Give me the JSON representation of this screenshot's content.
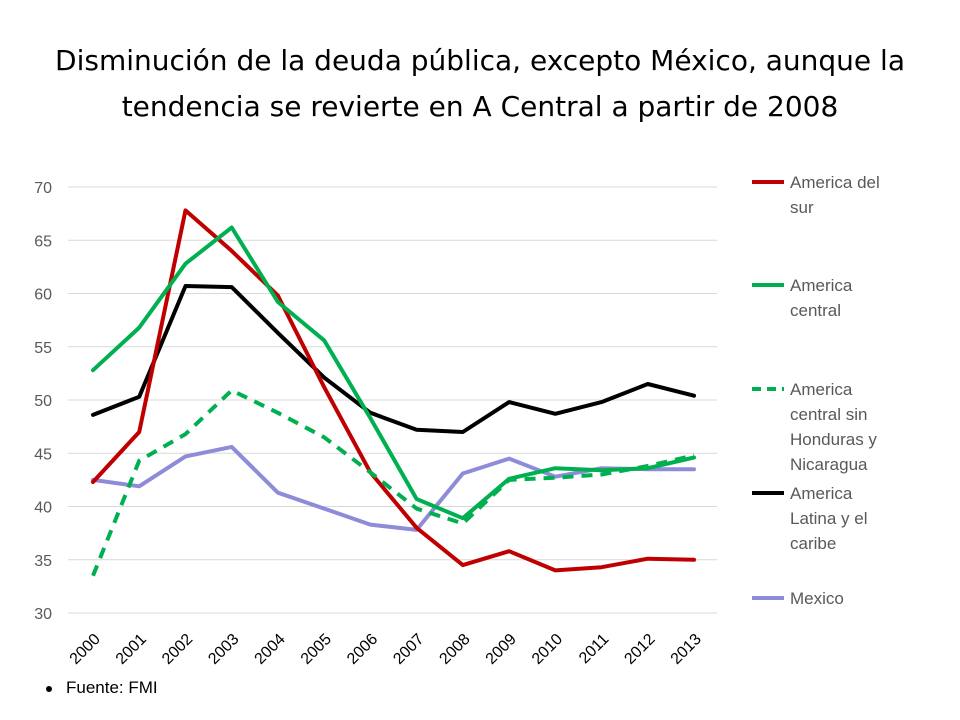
{
  "title_line1": "Disminución de la deuda pública, excepto México,  aunque la",
  "title_line2": "tendencia se revierte en A Central a partir de 2008",
  "source": "Fuente: FMI",
  "chart_data": {
    "type": "line",
    "categories": [
      "2000",
      "2001",
      "2002",
      "2003",
      "2004",
      "2005",
      "2006",
      "2007",
      "2008",
      "2009",
      "2010",
      "2011",
      "2012",
      "2013"
    ],
    "ylim": [
      30,
      70
    ],
    "yticks": [
      "30",
      "35",
      "40",
      "45",
      "50",
      "55",
      "60",
      "65",
      "70"
    ],
    "grid": true,
    "legend_position": "right",
    "series": [
      {
        "name": "America del sur",
        "label_lines": [
          "America del",
          "sur"
        ],
        "color": "#C00000",
        "dashed": false,
        "values": [
          42.3,
          47.0,
          67.8,
          64.0,
          59.8,
          51.2,
          43.2,
          38.0,
          34.5,
          35.8,
          34.0,
          34.3,
          35.1,
          35.0
        ]
      },
      {
        "name": "America central",
        "label_lines": [
          "America",
          "central"
        ],
        "color": "#00B050",
        "dashed": false,
        "values": [
          52.8,
          56.8,
          62.8,
          66.2,
          59.2,
          55.6,
          48.3,
          40.7,
          38.9,
          42.6,
          43.6,
          43.4,
          43.6,
          44.6
        ]
      },
      {
        "name": "America central sin Honduras y Nicaragua",
        "label_lines": [
          "America",
          "central sin",
          "Honduras y",
          "Nicaragua"
        ],
        "color": "#00B050",
        "dashed": true,
        "values": [
          33.5,
          44.3,
          46.8,
          50.9,
          48.8,
          46.5,
          43.2,
          39.8,
          38.4,
          42.5,
          42.7,
          43.0,
          43.8,
          44.8
        ]
      },
      {
        "name": "America Latina y el caribe",
        "label_lines": [
          "America",
          "Latina y el",
          "caribe"
        ],
        "color": "#000000",
        "dashed": false,
        "values": [
          48.6,
          50.3,
          60.7,
          60.6,
          56.3,
          52.1,
          48.8,
          47.2,
          47.0,
          49.8,
          48.7,
          49.8,
          51.5,
          50.4
        ]
      },
      {
        "name": "Mexico",
        "label_lines": [
          "Mexico"
        ],
        "color": "#8E8CD8",
        "dashed": false,
        "values": [
          42.5,
          41.9,
          44.7,
          45.6,
          41.3,
          39.8,
          38.3,
          37.8,
          43.1,
          44.5,
          42.8,
          43.6,
          43.5,
          43.5
        ]
      }
    ]
  }
}
